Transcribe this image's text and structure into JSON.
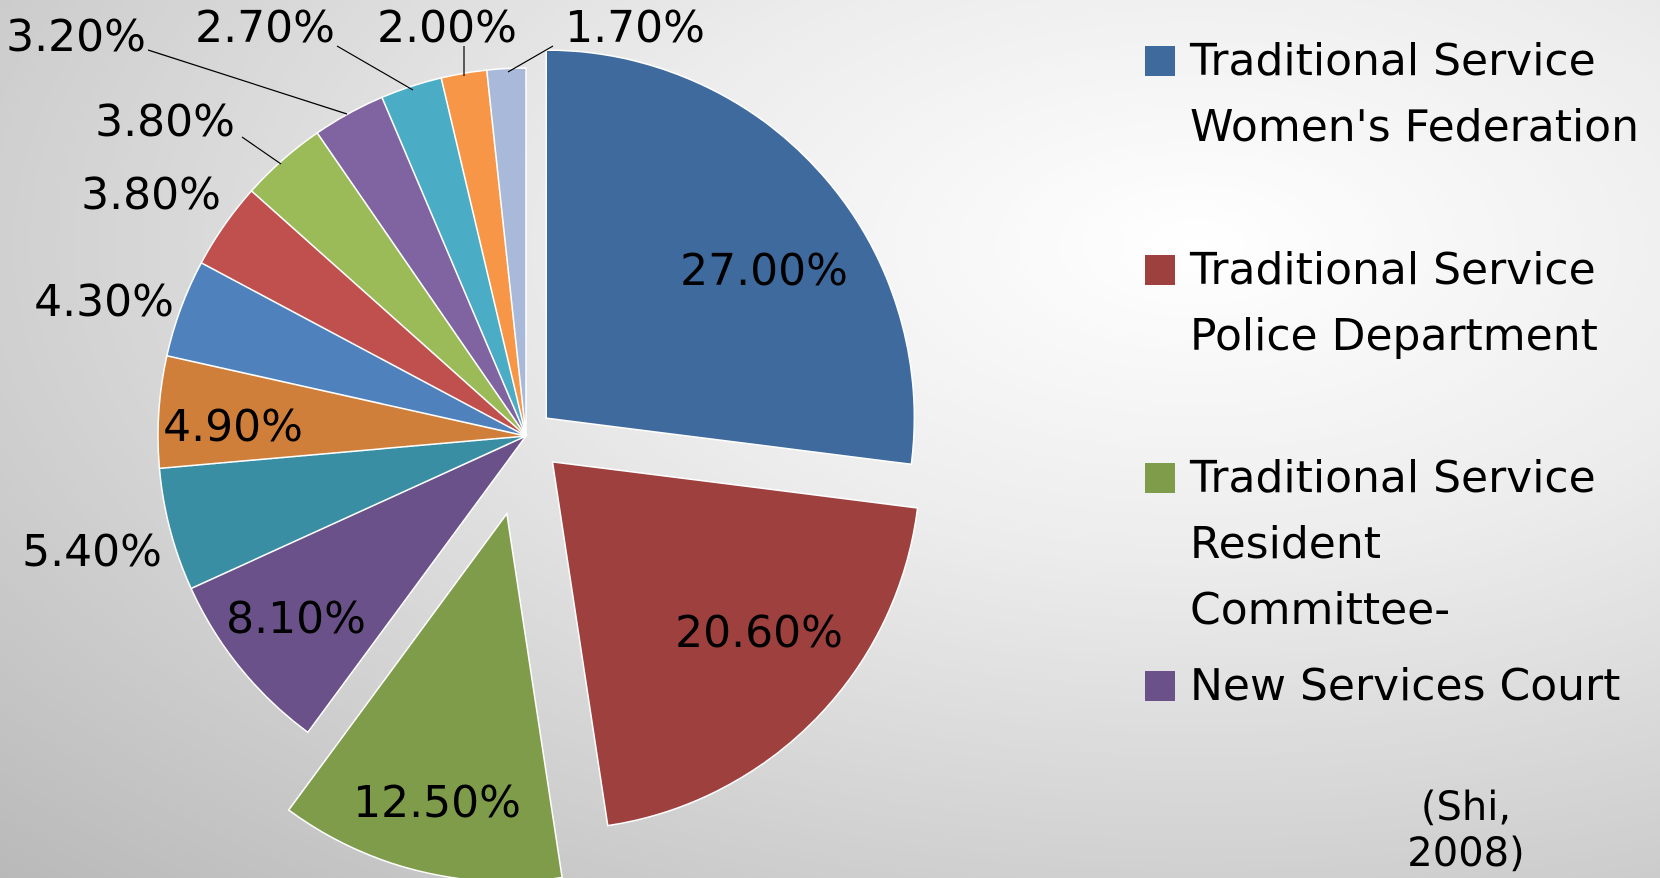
{
  "chart_data": {
    "type": "pie",
    "categories": [
      "Traditional Service Women's Federation",
      "Traditional Service Police Department",
      "Traditional Service Resident Committee-",
      "New Services Court",
      null,
      null,
      null,
      null,
      null,
      null,
      null,
      null,
      null
    ],
    "values": [
      27.0,
      20.6,
      12.5,
      8.1,
      5.4,
      4.9,
      4.3,
      3.8,
      3.8,
      3.2,
      2.7,
      2.0,
      1.7
    ],
    "value_labels": [
      "27.00%",
      "20.60%",
      "12.50%",
      "8.10%",
      "5.40%",
      "4.90%",
      "4.30%",
      "3.80%",
      "3.80%",
      "3.20%",
      "2.70%",
      "2.00%",
      "1.70%"
    ],
    "colors": [
      "#3F6A9E",
      "#9E403E",
      "#7F9C4A",
      "#6A5189",
      "#3A8EA3",
      "#D07F3A",
      "#4F81BD",
      "#C0504D",
      "#9BBB59",
      "#8064A2",
      "#4BACC6",
      "#F79646",
      "#A9B9D9"
    ],
    "legend": "right",
    "annotation": "(Shi, 2008)"
  }
}
